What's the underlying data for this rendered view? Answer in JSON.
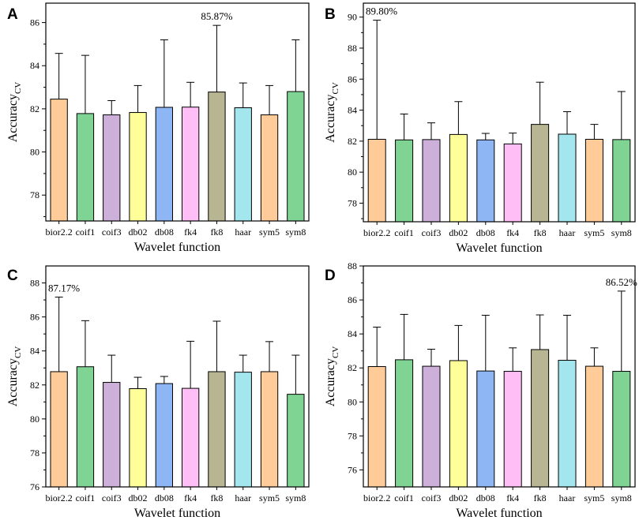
{
  "colors": {
    "bior2.2": "#FFCC99",
    "coif1": "#7FD494",
    "coif3": "#CDB0DA",
    "db02": "#FFFF99",
    "db08": "#8EB6F5",
    "fk4": "#FFBEF5",
    "fk8": "#B8B593",
    "haar": "#A3E6EE",
    "sym5": "#FFCC99",
    "sym8": "#7FD494"
  },
  "chart_data": [
    {
      "panel": "A",
      "type": "bar",
      "title": "",
      "xlabel": "Wavelet function",
      "ylabel_main": "Accuracy",
      "ylabel_sub": "CV",
      "categories": [
        "bior2.2",
        "coif1",
        "coif3",
        "db02",
        "db08",
        "fk4",
        "fk8",
        "haar",
        "sym5",
        "sym8"
      ],
      "values": [
        82.45,
        81.78,
        81.72,
        81.83,
        82.07,
        82.08,
        82.78,
        82.05,
        81.72,
        82.8
      ],
      "error_upper": [
        84.57,
        84.48,
        82.38,
        83.08,
        85.2,
        83.23,
        85.87,
        83.2,
        83.08,
        85.2
      ],
      "ylim": [
        76.8,
        86.9
      ],
      "yticks": [
        78,
        80,
        82,
        84,
        86
      ],
      "annotation": {
        "text": "85.87%",
        "category_index": 6
      }
    },
    {
      "panel": "B",
      "type": "bar",
      "title": "",
      "xlabel": "Wavelet function",
      "ylabel_main": "Accuracy",
      "ylabel_sub": "CV",
      "categories": [
        "bior2.2",
        "coif1",
        "coif3",
        "db02",
        "db08",
        "fk4",
        "fk8",
        "haar",
        "sym5",
        "sym8"
      ],
      "values": [
        82.12,
        82.08,
        82.1,
        82.43,
        82.08,
        81.82,
        83.08,
        82.45,
        82.12,
        82.1
      ],
      "error_upper": [
        89.8,
        83.75,
        83.18,
        84.55,
        82.5,
        82.52,
        85.8,
        83.9,
        83.08,
        85.2
      ],
      "ylim": [
        76.8,
        90.9
      ],
      "yticks": [
        78,
        80,
        82,
        84,
        86,
        88,
        90
      ],
      "annotation": {
        "text": "89.80%",
        "category_index": 0
      }
    },
    {
      "panel": "C",
      "type": "bar",
      "title": "",
      "xlabel": "Wavelet function",
      "ylabel_main": "Accuracy",
      "ylabel_sub": "CV",
      "categories": [
        "bior2.2",
        "coif1",
        "coif3",
        "db02",
        "db08",
        "fk4",
        "fk8",
        "haar",
        "sym5",
        "sym8"
      ],
      "values": [
        82.78,
        83.07,
        82.15,
        81.78,
        82.08,
        81.8,
        82.78,
        82.75,
        82.78,
        81.45
      ],
      "error_upper": [
        87.17,
        85.78,
        83.75,
        82.45,
        82.5,
        84.57,
        85.75,
        83.75,
        84.55,
        83.75
      ],
      "ylim": [
        76.0,
        89.0
      ],
      "yticks": [
        76,
        78,
        80,
        82,
        84,
        86,
        88
      ],
      "annotation": {
        "text": "87.17%",
        "category_index": 0
      }
    },
    {
      "panel": "D",
      "type": "bar",
      "title": "",
      "xlabel": "Wavelet function",
      "ylabel_main": "Accuracy",
      "ylabel_sub": "CV",
      "categories": [
        "bior2.2",
        "coif1",
        "coif3",
        "db02",
        "db08",
        "fk4",
        "fk8",
        "haar",
        "sym5",
        "sym8"
      ],
      "values": [
        82.08,
        82.48,
        82.1,
        82.43,
        81.82,
        81.8,
        83.08,
        82.45,
        82.1,
        81.8
      ],
      "error_upper": [
        84.4,
        85.15,
        83.1,
        84.5,
        85.1,
        83.18,
        85.12,
        85.1,
        83.18,
        86.52
      ],
      "ylim": [
        75.0,
        88.0
      ],
      "yticks": [
        76,
        78,
        80,
        82,
        84,
        86,
        88
      ],
      "annotation": {
        "text": "86.52%",
        "category_index": 9
      }
    }
  ]
}
